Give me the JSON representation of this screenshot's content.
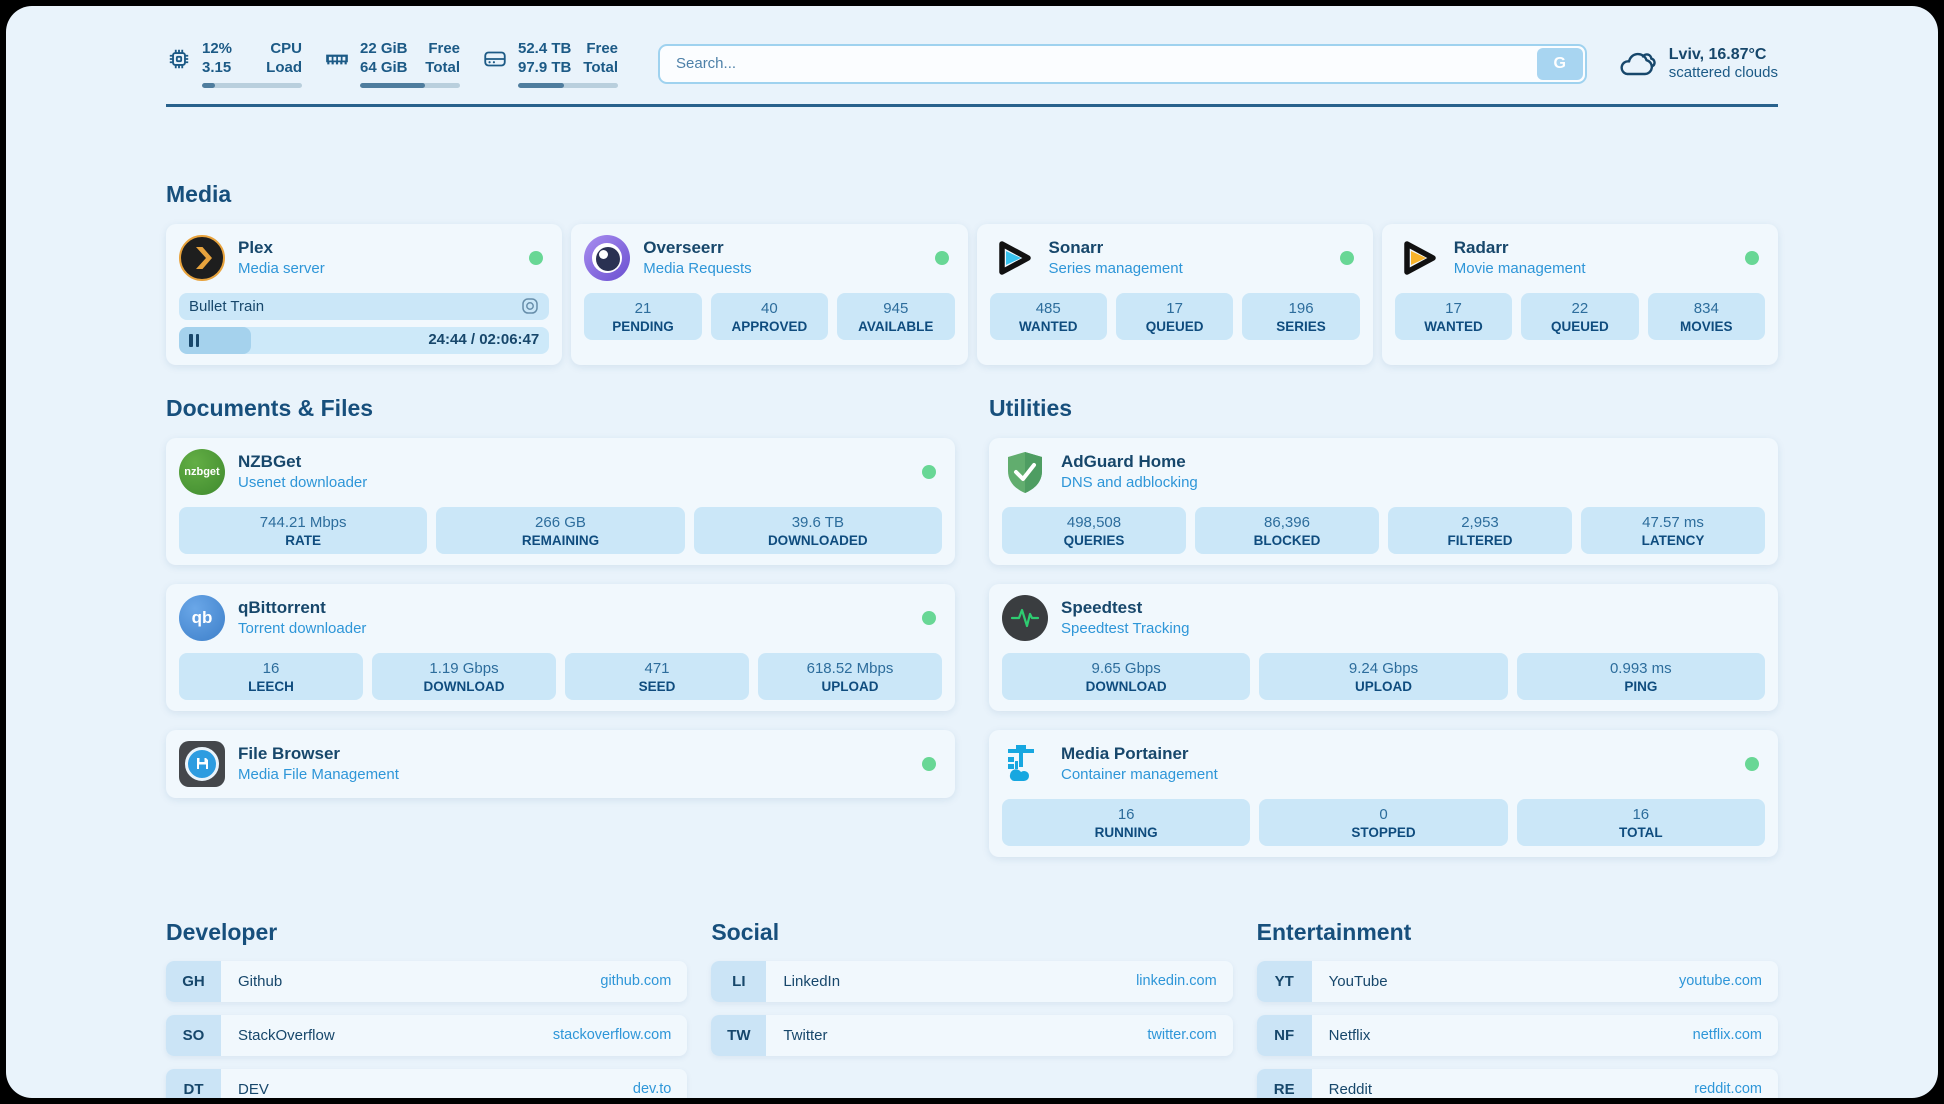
{
  "header": {
    "system_stats": [
      {
        "icon": "cpu-icon",
        "value_top": "12%",
        "value_bottom": "3.15",
        "label_top": "CPU",
        "label_bottom": "Load",
        "bar_percent": 13
      },
      {
        "icon": "ram-icon",
        "value_top": "22 GiB",
        "value_bottom": "64 GiB",
        "label_top": "Free",
        "label_bottom": "Total",
        "bar_percent": 65
      },
      {
        "icon": "disk-icon",
        "value_top": "52.4 TB",
        "value_bottom": "97.9 TB",
        "label_top": "Free",
        "label_bottom": "Total",
        "bar_percent": 46
      }
    ],
    "search": {
      "placeholder": "Search...",
      "button_label": "G"
    },
    "weather": {
      "location_temp": "Lviv, 16.87°C",
      "condition": "scattered clouds"
    }
  },
  "media": {
    "title": "Media",
    "plex": {
      "name": "Plex",
      "subtitle": "Media server",
      "now_playing": {
        "title": "Bullet Train",
        "time": "24:44 / 02:06:47",
        "progress_percent": 19.5
      }
    },
    "overseerr": {
      "name": "Overseerr",
      "subtitle": "Media Requests",
      "stats": [
        {
          "value": "21",
          "label": "PENDING"
        },
        {
          "value": "40",
          "label": "APPROVED"
        },
        {
          "value": "945",
          "label": "AVAILABLE"
        }
      ]
    },
    "sonarr": {
      "name": "Sonarr",
      "subtitle": "Series management",
      "stats": [
        {
          "value": "485",
          "label": "WANTED"
        },
        {
          "value": "17",
          "label": "QUEUED"
        },
        {
          "value": "196",
          "label": "SERIES"
        }
      ]
    },
    "radarr": {
      "name": "Radarr",
      "subtitle": "Movie management",
      "stats": [
        {
          "value": "17",
          "label": "WANTED"
        },
        {
          "value": "22",
          "label": "QUEUED"
        },
        {
          "value": "834",
          "label": "MOVIES"
        }
      ]
    }
  },
  "documents": {
    "title": "Documents & Files",
    "nzbget": {
      "name": "NZBGet",
      "subtitle": "Usenet downloader",
      "icon_text": "nzbget",
      "stats": [
        {
          "value": "744.21 Mbps",
          "label": "RATE"
        },
        {
          "value": "266 GB",
          "label": "REMAINING"
        },
        {
          "value": "39.6 TB",
          "label": "DOWNLOADED"
        }
      ]
    },
    "qbittorrent": {
      "name": "qBittorrent",
      "subtitle": "Torrent downloader",
      "icon_text": "qb",
      "stats": [
        {
          "value": "16",
          "label": "LEECH"
        },
        {
          "value": "1.19 Gbps",
          "label": "DOWNLOAD"
        },
        {
          "value": "471",
          "label": "SEED"
        },
        {
          "value": "618.52 Mbps",
          "label": "UPLOAD"
        }
      ]
    },
    "filebrowser": {
      "name": "File Browser",
      "subtitle": "Media File Management"
    }
  },
  "utilities": {
    "title": "Utilities",
    "adguard": {
      "name": "AdGuard Home",
      "subtitle": "DNS and adblocking",
      "stats": [
        {
          "value": "498,508",
          "label": "QUERIES"
        },
        {
          "value": "86,396",
          "label": "BLOCKED"
        },
        {
          "value": "2,953",
          "label": "FILTERED"
        },
        {
          "value": "47.57 ms",
          "label": "LATENCY"
        }
      ]
    },
    "speedtest": {
      "name": "Speedtest",
      "subtitle": "Speedtest Tracking",
      "stats": [
        {
          "value": "9.65 Gbps",
          "label": "DOWNLOAD"
        },
        {
          "value": "9.24 Gbps",
          "label": "UPLOAD"
        },
        {
          "value": "0.993 ms",
          "label": "PING"
        }
      ]
    },
    "portainer": {
      "name": "Media Portainer",
      "subtitle": "Container management",
      "stats": [
        {
          "value": "16",
          "label": "RUNNING"
        },
        {
          "value": "0",
          "label": "STOPPED"
        },
        {
          "value": "16",
          "label": "TOTAL"
        }
      ]
    }
  },
  "links": {
    "developer": {
      "title": "Developer",
      "items": [
        {
          "abbr": "GH",
          "name": "Github",
          "url": "github.com"
        },
        {
          "abbr": "SO",
          "name": "StackOverflow",
          "url": "stackoverflow.com"
        },
        {
          "abbr": "DT",
          "name": "DEV",
          "url": "dev.to"
        }
      ]
    },
    "social": {
      "title": "Social",
      "items": [
        {
          "abbr": "LI",
          "name": "LinkedIn",
          "url": "linkedin.com"
        },
        {
          "abbr": "TW",
          "name": "Twitter",
          "url": "twitter.com"
        }
      ]
    },
    "entertainment": {
      "title": "Entertainment",
      "items": [
        {
          "abbr": "YT",
          "name": "YouTube",
          "url": "youtube.com"
        },
        {
          "abbr": "NF",
          "name": "Netflix",
          "url": "netflix.com"
        },
        {
          "abbr": "RE",
          "name": "Reddit",
          "url": "reddit.com"
        }
      ]
    }
  },
  "colors": {
    "status_online": "#68d795",
    "accent_blue": "#2e96d8",
    "navy": "#17476b",
    "page_bg": "#e9f3fb",
    "card_bg": "#f1f8fd",
    "chip_bg": "#cbe7f8"
  }
}
